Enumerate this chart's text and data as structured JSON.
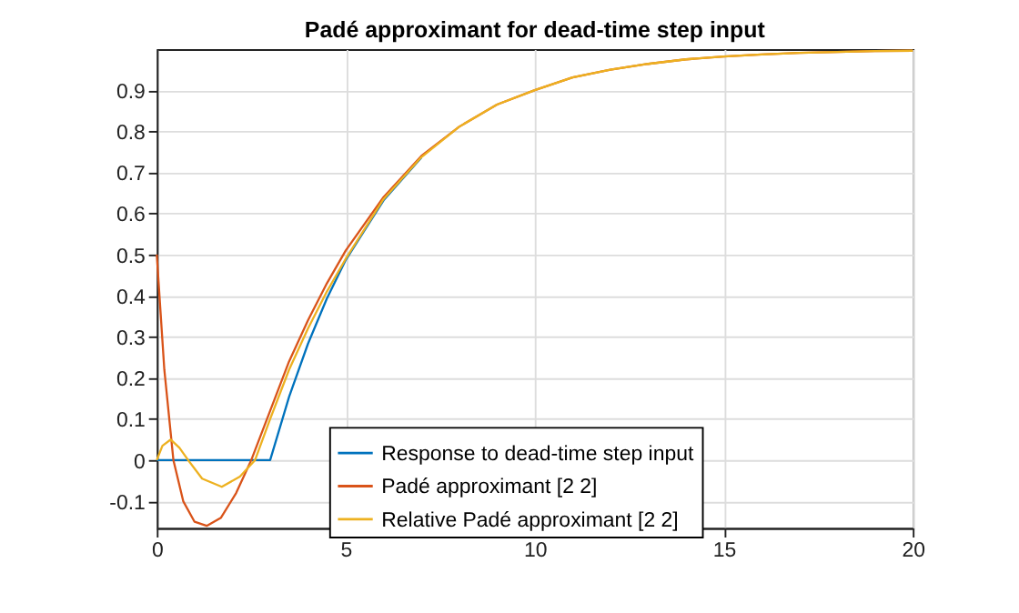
{
  "chart_data": {
    "type": "line",
    "title": "Padé approximant for dead-time step input",
    "xlim": [
      0,
      20
    ],
    "xticks": [
      0,
      5,
      10,
      15,
      20
    ],
    "ylim": [
      -0.165,
      1
    ],
    "yticks": [
      -0.1,
      0,
      0.1,
      0.2,
      0.3,
      0.4,
      0.5,
      0.6,
      0.7,
      0.8,
      0.9
    ],
    "grid": true,
    "legend": "bottom",
    "line_style": "solid",
    "marker": "none",
    "series": [
      {
        "name": "Response to dead-time step input",
        "color": "#0072bd",
        "x": [
          0,
          3,
          3.5,
          4,
          4.5,
          5,
          6,
          7
        ],
        "values": [
          0,
          0,
          0.154,
          0.283,
          0.393,
          0.487,
          0.632,
          0.736
        ]
      },
      {
        "name": "Padé approximant [2 2]",
        "color": "#d95319",
        "x": [
          0,
          0.2,
          0.44,
          0.7,
          1.0,
          1.32,
          1.7,
          2.1,
          2.5,
          3,
          3.5,
          4,
          4.5,
          5,
          6,
          7,
          8,
          9,
          10,
          11,
          12,
          13,
          14,
          15,
          16,
          17,
          18,
          19,
          20
        ],
        "values": [
          0.5,
          0.22,
          0,
          -0.1,
          -0.15,
          -0.16,
          -0.14,
          -0.08,
          0,
          0.12,
          0.24,
          0.34,
          0.43,
          0.51,
          0.64,
          0.74,
          0.811,
          0.865,
          0.9,
          0.931,
          0.95,
          0.964,
          0.975,
          0.982,
          0.987,
          0.991,
          0.993,
          0.995,
          0.996
        ]
      },
      {
        "name": "Relative Padé approximant [2 2]",
        "color": "#edb120",
        "x": [
          0,
          0.15,
          0.37,
          0.6,
          0.83,
          1.2,
          1.72,
          2.2,
          2.6,
          3,
          3.5,
          4,
          4.5,
          5,
          6,
          7,
          8,
          9,
          10,
          11,
          12,
          13,
          14,
          15,
          16,
          17,
          18,
          19,
          20
        ],
        "values": [
          0,
          0.035,
          0.05,
          0.03,
          0,
          -0.045,
          -0.065,
          -0.04,
          0,
          0.1,
          0.22,
          0.32,
          0.41,
          0.49,
          0.635,
          0.737,
          0.811,
          0.865,
          0.9,
          0.931,
          0.95,
          0.964,
          0.975,
          0.982,
          0.987,
          0.991,
          0.993,
          0.995,
          0.996
        ]
      }
    ]
  }
}
